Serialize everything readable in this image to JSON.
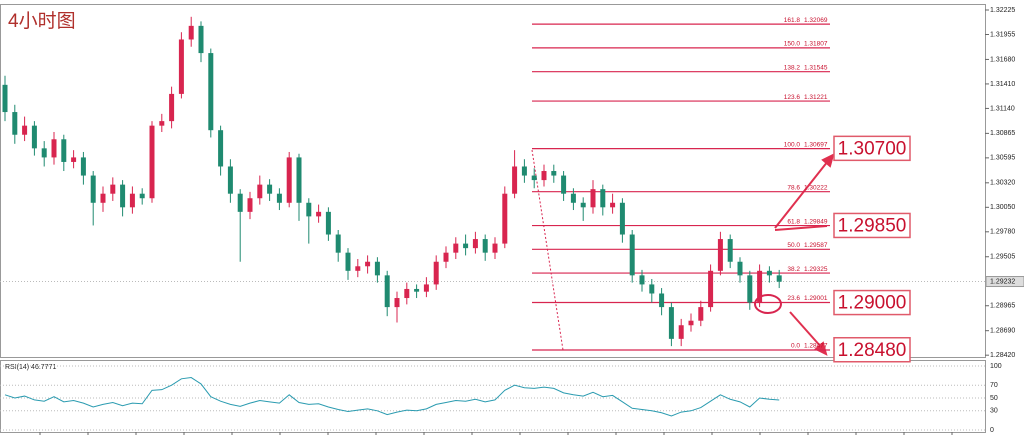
{
  "chart_data": {
    "type": "candlestick",
    "title": "4小时图",
    "up_color": "#d8254f",
    "down_color": "#1f8a70",
    "fib_color": "#d8254f",
    "ylim": [
      1.284,
      1.3228
    ],
    "yticks": [
      {
        "value": 1.32225,
        "label": "1.32225"
      },
      {
        "value": 1.31955,
        "label": "1.31955"
      },
      {
        "value": 1.3168,
        "label": "1.31680"
      },
      {
        "value": 1.3141,
        "label": "1.31410"
      },
      {
        "value": 1.3114,
        "label": "1.31140"
      },
      {
        "value": 1.30865,
        "label": "1.30865"
      },
      {
        "value": 1.30595,
        "label": "1.30595"
      },
      {
        "value": 1.3032,
        "label": "1.30320"
      },
      {
        "value": 1.3005,
        "label": "1.30050"
      },
      {
        "value": 1.2978,
        "label": "1.29780"
      },
      {
        "value": 1.29505,
        "label": "1.29505"
      },
      {
        "value": 1.28965,
        "label": "1.28965"
      },
      {
        "value": 1.2869,
        "label": "1.28690"
      },
      {
        "value": 1.2842,
        "label": "1.28420"
      }
    ],
    "last_price": 1.29232,
    "open": [
      1.314,
      1.311,
      1.3085,
      1.3095,
      1.307,
      1.306,
      1.308,
      1.3055,
      1.306,
      1.304,
      1.301,
      1.302,
      1.303,
      1.3005,
      1.302,
      1.3015,
      1.3095,
      1.31,
      1.313,
      1.319,
      1.3205,
      1.3175,
      1.309,
      1.305,
      1.302,
      1.3,
      1.3015,
      1.303,
      1.302,
      1.301,
      1.306,
      1.301,
      1.2995,
      1.3,
      1.2975,
      1.2955,
      1.2935,
      1.294,
      1.2945,
      1.293,
      1.2895,
      1.2905,
      1.2915,
      1.2912,
      1.292,
      1.2945,
      1.2955,
      1.2965,
      1.296,
      1.297,
      1.2955,
      1.2965,
      1.302,
      1.305,
      1.304,
      1.3035,
      1.3045,
      1.304,
      1.302,
      1.301,
      1.3005,
      1.3025,
      1.3005,
      1.301,
      1.2975,
      1.293,
      1.292,
      1.291,
      1.2895,
      1.286,
      1.2875,
      1.288,
      1.2895,
      1.2935,
      1.297,
      1.2945,
      1.293,
      1.29,
      1.2935,
      1.293
    ],
    "high": [
      1.315,
      1.3118,
      1.3105,
      1.31,
      1.3078,
      1.3088,
      1.3085,
      1.3068,
      1.3066,
      1.3045,
      1.3028,
      1.3038,
      1.3035,
      1.3028,
      1.3026,
      1.31,
      1.3108,
      1.3138,
      1.3198,
      1.3215,
      1.321,
      1.318,
      1.3095,
      1.3058,
      1.3025,
      1.3022,
      1.304,
      1.3036,
      1.3026,
      1.3066,
      1.3064,
      1.3015,
      1.3008,
      1.3005,
      1.298,
      1.296,
      1.2948,
      1.2952,
      1.295,
      1.2935,
      1.2912,
      1.2922,
      1.292,
      1.2928,
      1.2952,
      1.2962,
      1.2972,
      1.2975,
      1.2978,
      1.2975,
      1.2972,
      1.3028,
      1.3068,
      1.3058,
      1.3048,
      1.3052,
      1.3052,
      1.3045,
      1.3026,
      1.3016,
      1.3035,
      1.303,
      1.302,
      1.3015,
      1.298,
      1.2936,
      1.2926,
      1.2916,
      1.29,
      1.2882,
      1.2888,
      1.2902,
      1.2942,
      1.2978,
      1.2975,
      1.295,
      1.2935,
      1.2942,
      1.294,
      1.2936
    ],
    "low": [
      1.31,
      1.3075,
      1.3078,
      1.3062,
      1.305,
      1.3052,
      1.3045,
      1.3048,
      1.303,
      1.2985,
      1.3,
      1.3012,
      1.2995,
      1.2998,
      1.3008,
      1.301,
      1.3088,
      1.3092,
      1.3125,
      1.3182,
      1.3165,
      1.3082,
      1.304,
      1.301,
      1.2945,
      1.2992,
      1.3008,
      1.3012,
      1.3002,
      1.3005,
      1.299,
      1.2965,
      1.2988,
      1.2968,
      1.2945,
      1.2925,
      1.2928,
      1.2932,
      1.2922,
      1.2885,
      1.2878,
      1.2898,
      1.2905,
      1.2906,
      1.2914,
      1.2938,
      1.2948,
      1.2952,
      1.2954,
      1.2946,
      1.2948,
      1.296,
      1.3015,
      1.3032,
      1.3026,
      1.3028,
      1.3032,
      1.3012,
      1.3002,
      1.299,
      1.2998,
      1.2996,
      1.2998,
      1.2966,
      1.2922,
      1.2912,
      1.29,
      1.2886,
      1.2852,
      1.2852,
      1.2868,
      1.2874,
      1.289,
      1.293,
      1.2938,
      1.2922,
      1.2892,
      1.2895,
      1.2922,
      1.2916
    ],
    "close": [
      1.311,
      1.3085,
      1.3095,
      1.307,
      1.306,
      1.308,
      1.3055,
      1.306,
      1.304,
      1.301,
      1.302,
      1.303,
      1.3005,
      1.302,
      1.3015,
      1.3095,
      1.31,
      1.313,
      1.319,
      1.3205,
      1.3175,
      1.309,
      1.305,
      1.302,
      1.3,
      1.3015,
      1.303,
      1.302,
      1.301,
      1.306,
      1.301,
      1.2995,
      1.3,
      1.2975,
      1.2955,
      1.2935,
      1.294,
      1.2945,
      1.293,
      1.2895,
      1.2905,
      1.2915,
      1.2912,
      1.292,
      1.2945,
      1.2955,
      1.2965,
      1.296,
      1.297,
      1.2955,
      1.2965,
      1.302,
      1.305,
      1.304,
      1.3035,
      1.3045,
      1.304,
      1.302,
      1.301,
      1.3005,
      1.3025,
      1.3005,
      1.301,
      1.2975,
      1.293,
      1.292,
      1.291,
      1.2895,
      1.286,
      1.2875,
      1.288,
      1.2895,
      1.2935,
      1.297,
      1.2945,
      1.293,
      1.29,
      1.2935,
      1.293,
      1.2923
    ],
    "fib_levels": [
      {
        "ratio": "161.8",
        "price": 1.32069
      },
      {
        "ratio": "150.0",
        "price": 1.31807
      },
      {
        "ratio": "138.2",
        "price": 1.31545
      },
      {
        "ratio": "123.6",
        "price": 1.31221
      },
      {
        "ratio": "100.0",
        "price": 1.30697
      },
      {
        "ratio": "78.6",
        "price": 1.30222
      },
      {
        "ratio": "61.8",
        "price": 1.29849
      },
      {
        "ratio": "50.0",
        "price": 1.29587
      },
      {
        "ratio": "38.2",
        "price": 1.29325
      },
      {
        "ratio": "23.6",
        "price": 1.29001
      },
      {
        "ratio": "0.0",
        "price": 1.28477
      }
    ],
    "targets": [
      {
        "value": 1.307,
        "label": "1.30700"
      },
      {
        "value": 1.2985,
        "label": "1.29850"
      },
      {
        "value": 1.29,
        "label": "1.29000"
      },
      {
        "value": 1.2848,
        "label": "1.28480"
      }
    ],
    "rsi": {
      "title": "RSI(14) 46.7771",
      "color": "#2a9bb0",
      "ylim": [
        0,
        100
      ],
      "yticks": [
        100,
        70,
        50,
        30,
        0
      ],
      "values": [
        55,
        50,
        53,
        47,
        45,
        52,
        44,
        46,
        42,
        36,
        40,
        43,
        38,
        42,
        41,
        62,
        63,
        70,
        80,
        82,
        72,
        52,
        45,
        40,
        37,
        42,
        46,
        44,
        42,
        55,
        43,
        40,
        41,
        36,
        32,
        29,
        31,
        33,
        30,
        24,
        28,
        31,
        30,
        33,
        40,
        43,
        46,
        45,
        48,
        44,
        47,
        62,
        70,
        66,
        65,
        67,
        65,
        58,
        55,
        53,
        59,
        52,
        54,
        44,
        34,
        32,
        30,
        27,
        22,
        28,
        30,
        35,
        45,
        55,
        48,
        44,
        36,
        50,
        48,
        46.78
      ]
    }
  }
}
